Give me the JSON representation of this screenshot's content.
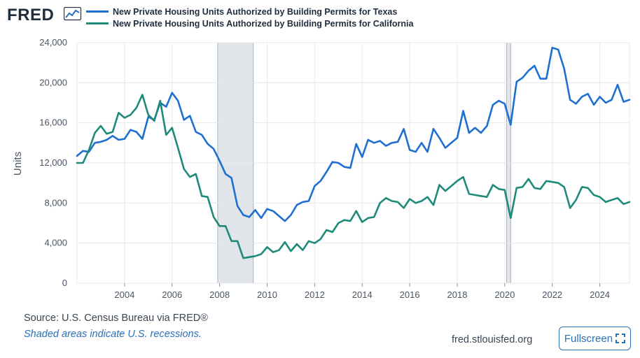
{
  "header": {
    "logo_text": "FRED",
    "logo_icon": "line-chart-icon"
  },
  "chart_data": {
    "type": "line",
    "title": "",
    "xlabel": "",
    "ylabel": "Units",
    "xlim": [
      2002.0,
      2025.25
    ],
    "ylim": [
      0,
      24000
    ],
    "y_ticks": [
      0,
      4000,
      8000,
      12000,
      16000,
      20000,
      24000
    ],
    "y_tick_labels": [
      "0",
      "4,000",
      "8,000",
      "12,000",
      "16,000",
      "20,000",
      "24,000"
    ],
    "x_ticks": [
      2004,
      2006,
      2008,
      2010,
      2012,
      2014,
      2016,
      2018,
      2020,
      2022,
      2024
    ],
    "x_tick_labels": [
      "2004",
      "2006",
      "2008",
      "2010",
      "2012",
      "2014",
      "2016",
      "2018",
      "2020",
      "2022",
      "2024"
    ],
    "grid": true,
    "recessions": [
      [
        2007.92,
        2009.42
      ],
      [
        2020.08,
        2020.25
      ]
    ],
    "series": [
      {
        "name": "New Private Housing Units Authorized by Building Permits for Texas",
        "color": "#1e6fd0",
        "x": [
          2002.0,
          2002.25,
          2002.5,
          2002.75,
          2003.0,
          2003.25,
          2003.5,
          2003.75,
          2004.0,
          2004.25,
          2004.5,
          2004.75,
          2005.0,
          2005.25,
          2005.5,
          2005.75,
          2006.0,
          2006.25,
          2006.5,
          2006.75,
          2007.0,
          2007.25,
          2007.5,
          2007.75,
          2008.0,
          2008.25,
          2008.5,
          2008.75,
          2009.0,
          2009.25,
          2009.5,
          2009.75,
          2010.0,
          2010.25,
          2010.5,
          2010.75,
          2011.0,
          2011.25,
          2011.5,
          2011.75,
          2012.0,
          2012.25,
          2012.5,
          2012.75,
          2013.0,
          2013.25,
          2013.5,
          2013.75,
          2014.0,
          2014.25,
          2014.5,
          2014.75,
          2015.0,
          2015.25,
          2015.5,
          2015.75,
          2016.0,
          2016.25,
          2016.5,
          2016.75,
          2017.0,
          2017.25,
          2017.5,
          2017.75,
          2018.0,
          2018.25,
          2018.5,
          2018.75,
          2019.0,
          2019.25,
          2019.5,
          2019.75,
          2020.0,
          2020.25,
          2020.5,
          2020.75,
          2021.0,
          2021.25,
          2021.5,
          2021.75,
          2022.0,
          2022.25,
          2022.5,
          2022.75,
          2023.0,
          2023.25,
          2023.5,
          2023.75,
          2024.0,
          2024.25,
          2024.5,
          2024.75,
          2025.0,
          2025.25
        ],
        "values": [
          12700,
          13200,
          13100,
          14000,
          14100,
          14300,
          14700,
          14300,
          14400,
          15300,
          15100,
          14400,
          16600,
          16300,
          18000,
          17600,
          19000,
          18200,
          16300,
          16700,
          15100,
          14800,
          13900,
          13400,
          12200,
          10900,
          10500,
          7700,
          6800,
          6600,
          7300,
          6500,
          7400,
          7200,
          6700,
          6200,
          6800,
          7800,
          8100,
          8200,
          9700,
          10200,
          11100,
          12100,
          12000,
          11600,
          11500,
          13900,
          12600,
          14300,
          14000,
          14200,
          13700,
          14000,
          14100,
          15400,
          13300,
          13100,
          14000,
          13100,
          15400,
          14500,
          13500,
          14000,
          14500,
          17200,
          15000,
          15500,
          15000,
          15700,
          17800,
          18200,
          17900,
          15800,
          20100,
          20500,
          21200,
          21700,
          20400,
          20400,
          23500,
          23300,
          21400,
          18300,
          17900,
          18600,
          18900,
          17800,
          18600,
          18000,
          18300,
          19800,
          18100,
          18300
        ]
      },
      {
        "name": "New Private Housing Units Authorized by Building Permits for California",
        "color": "#1e8a7a",
        "x": [
          2002.0,
          2002.25,
          2002.5,
          2002.75,
          2003.0,
          2003.25,
          2003.5,
          2003.75,
          2004.0,
          2004.25,
          2004.5,
          2004.75,
          2005.0,
          2005.25,
          2005.5,
          2005.75,
          2006.0,
          2006.25,
          2006.5,
          2006.75,
          2007.0,
          2007.25,
          2007.5,
          2007.75,
          2008.0,
          2008.25,
          2008.5,
          2008.75,
          2009.0,
          2009.25,
          2009.5,
          2009.75,
          2010.0,
          2010.25,
          2010.5,
          2010.75,
          2011.0,
          2011.25,
          2011.5,
          2011.75,
          2012.0,
          2012.25,
          2012.5,
          2012.75,
          2013.0,
          2013.25,
          2013.5,
          2013.75,
          2014.0,
          2014.25,
          2014.5,
          2014.75,
          2015.0,
          2015.25,
          2015.5,
          2015.75,
          2016.0,
          2016.25,
          2016.5,
          2016.75,
          2017.0,
          2017.25,
          2017.5,
          2017.75,
          2018.0,
          2018.25,
          2018.5,
          2018.75,
          2019.0,
          2019.25,
          2019.5,
          2019.75,
          2020.0,
          2020.25,
          2020.5,
          2020.75,
          2021.0,
          2021.25,
          2021.5,
          2021.75,
          2022.0,
          2022.25,
          2022.5,
          2022.75,
          2023.0,
          2023.25,
          2023.5,
          2023.75,
          2024.0,
          2024.25,
          2024.5,
          2024.75,
          2025.0,
          2025.25
        ],
        "values": [
          12000,
          12000,
          13300,
          15000,
          15700,
          14900,
          15100,
          17000,
          16500,
          16800,
          17500,
          18800,
          16800,
          16200,
          18200,
          14800,
          15500,
          13500,
          11400,
          10600,
          10900,
          8700,
          8600,
          6600,
          5700,
          5700,
          4200,
          4200,
          2500,
          2600,
          2700,
          2900,
          3600,
          3100,
          3300,
          4100,
          3200,
          3900,
          3300,
          4200,
          4000,
          4400,
          5300,
          5100,
          6000,
          6300,
          6200,
          7200,
          6100,
          6500,
          6600,
          8000,
          8500,
          8200,
          8100,
          7500,
          8400,
          8000,
          8200,
          8600,
          7800,
          9800,
          9200,
          9700,
          10200,
          10600,
          8900,
          8800,
          8700,
          8600,
          9800,
          9400,
          9300,
          6500,
          9500,
          9600,
          10400,
          9500,
          9400,
          10200,
          10100,
          10000,
          9600,
          7500,
          8300,
          9600,
          9500,
          8800,
          8600,
          8100,
          8300,
          8500,
          7900,
          8100
        ]
      }
    ]
  },
  "footer": {
    "source": "Source: U.S. Census Bureau via FRED®",
    "note": "Shaded areas indicate U.S. recessions.",
    "url": "fred.stlouisfed.org",
    "fullscreen_label": "Fullscreen",
    "fullscreen_icon": "expand-icon"
  }
}
